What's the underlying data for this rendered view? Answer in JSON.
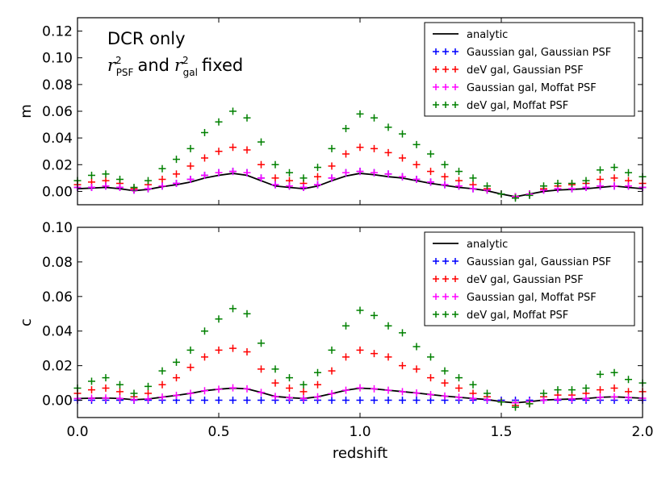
{
  "chart_data": [
    {
      "type": "scatter",
      "panel": "top",
      "ylabel": "m",
      "xlabel": "",
      "xlim": [
        0.0,
        2.0
      ],
      "ylim": [
        -0.01,
        0.13
      ],
      "yticks": [
        "0.00",
        "0.02",
        "0.04",
        "0.06",
        "0.08",
        "0.10",
        "0.12"
      ],
      "ytick_values": [
        0.0,
        0.02,
        0.04,
        0.06,
        0.08,
        0.1,
        0.12
      ],
      "xtick_values": [
        0.0,
        0.5,
        1.0,
        1.5,
        2.0
      ],
      "annotation": {
        "line1": "DCR only",
        "var1": "r",
        "sup1": "2",
        "sub1": "PSF",
        "mid": "and",
        "var2": "r",
        "sup2": "2",
        "sub2": "gal",
        "tail": "fixed"
      },
      "legend_position": "top-right",
      "x": [
        0.0,
        0.05,
        0.1,
        0.15,
        0.2,
        0.25,
        0.3,
        0.35,
        0.4,
        0.45,
        0.5,
        0.55,
        0.6,
        0.65,
        0.7,
        0.75,
        0.8,
        0.85,
        0.9,
        0.95,
        1.0,
        1.05,
        1.1,
        1.15,
        1.2,
        1.25,
        1.3,
        1.35,
        1.4,
        1.45,
        1.5,
        1.55,
        1.6,
        1.65,
        1.7,
        1.75,
        1.8,
        1.85,
        1.9,
        1.95,
        2.0
      ],
      "series": [
        {
          "name": "analytic",
          "style": "line",
          "color": "#000000",
          "x": [
            0.0,
            0.05,
            0.1,
            0.15,
            0.2,
            0.25,
            0.3,
            0.35,
            0.4,
            0.45,
            0.5,
            0.55,
            0.6,
            0.65,
            0.7,
            0.75,
            0.8,
            0.85,
            0.9,
            0.95,
            1.0,
            1.05,
            1.1,
            1.15,
            1.2,
            1.25,
            1.3,
            1.35,
            1.4,
            1.45,
            1.5,
            1.55,
            1.6,
            1.65,
            1.7,
            1.75,
            1.8,
            1.85,
            1.9,
            1.95,
            2.0
          ],
          "values": [
            0.002,
            0.0025,
            0.003,
            0.002,
            0.0005,
            0.0015,
            0.0035,
            0.005,
            0.007,
            0.01,
            0.012,
            0.0135,
            0.012,
            0.008,
            0.004,
            0.003,
            0.002,
            0.004,
            0.008,
            0.0115,
            0.0135,
            0.0125,
            0.011,
            0.01,
            0.008,
            0.006,
            0.0045,
            0.003,
            0.002,
            0.0005,
            -0.002,
            -0.004,
            -0.002,
            0.0,
            0.001,
            0.0015,
            0.002,
            0.003,
            0.004,
            0.003,
            0.002
          ]
        },
        {
          "name": "Gaussian gal, Gaussian PSF",
          "style": "markers",
          "color": "#0000ff",
          "x": [
            0.0,
            0.05,
            0.1,
            0.15,
            0.2,
            0.25,
            0.3,
            0.35,
            0.4,
            0.45,
            0.5,
            0.55,
            0.6,
            0.65,
            0.7,
            0.75,
            0.8,
            0.85,
            0.9,
            0.95,
            1.0,
            1.05,
            1.1,
            1.15,
            1.2,
            1.25,
            1.3,
            1.35,
            1.4,
            1.45,
            1.5,
            1.55,
            1.6,
            1.65,
            1.7,
            1.75,
            1.8,
            1.85,
            1.9,
            1.95,
            2.0
          ],
          "values": [
            0.003,
            0.003,
            0.004,
            0.003,
            0.001,
            0.002,
            0.004,
            0.006,
            0.009,
            0.012,
            0.014,
            0.015,
            0.014,
            0.01,
            0.005,
            0.004,
            0.003,
            0.005,
            0.01,
            0.014,
            0.015,
            0.014,
            0.013,
            0.011,
            0.009,
            0.007,
            0.005,
            0.004,
            0.002,
            0.001,
            -0.002,
            -0.004,
            -0.002,
            0.001,
            0.002,
            0.002,
            0.003,
            0.004,
            0.004,
            0.004,
            0.003
          ]
        },
        {
          "name": "deV gal, Gaussian PSF",
          "style": "markers",
          "color": "#ff0000",
          "x": [
            0.0,
            0.05,
            0.1,
            0.15,
            0.2,
            0.25,
            0.3,
            0.35,
            0.4,
            0.45,
            0.5,
            0.55,
            0.6,
            0.65,
            0.7,
            0.75,
            0.8,
            0.85,
            0.9,
            0.95,
            1.0,
            1.05,
            1.1,
            1.15,
            1.2,
            1.25,
            1.3,
            1.35,
            1.4,
            1.45,
            1.5,
            1.55,
            1.6,
            1.65,
            1.7,
            1.75,
            1.8,
            1.85,
            1.9,
            1.95,
            2.0
          ],
          "values": [
            0.005,
            0.007,
            0.008,
            0.006,
            0.002,
            0.005,
            0.009,
            0.013,
            0.019,
            0.025,
            0.03,
            0.033,
            0.031,
            0.02,
            0.01,
            0.008,
            0.006,
            0.011,
            0.019,
            0.028,
            0.033,
            0.032,
            0.029,
            0.025,
            0.02,
            0.015,
            0.011,
            0.008,
            0.005,
            0.002,
            -0.002,
            -0.004,
            -0.002,
            0.002,
            0.004,
            0.005,
            0.006,
            0.009,
            0.01,
            0.008,
            0.006
          ]
        },
        {
          "name": "Gaussian gal, Moffat PSF",
          "style": "markers",
          "color": "#ff00ff",
          "x": [
            0.0,
            0.05,
            0.1,
            0.15,
            0.2,
            0.25,
            0.3,
            0.35,
            0.4,
            0.45,
            0.5,
            0.55,
            0.6,
            0.65,
            0.7,
            0.75,
            0.8,
            0.85,
            0.9,
            0.95,
            1.0,
            1.05,
            1.1,
            1.15,
            1.2,
            1.25,
            1.3,
            1.35,
            1.4,
            1.45,
            1.5,
            1.55,
            1.6,
            1.65,
            1.7,
            1.75,
            1.8,
            1.85,
            1.9,
            1.95,
            2.0
          ],
          "values": [
            0.003,
            0.003,
            0.004,
            0.003,
            0.001,
            0.002,
            0.004,
            0.006,
            0.009,
            0.012,
            0.014,
            0.015,
            0.014,
            0.01,
            0.005,
            0.004,
            0.003,
            0.005,
            0.01,
            0.014,
            0.015,
            0.014,
            0.013,
            0.011,
            0.009,
            0.007,
            0.005,
            0.004,
            0.002,
            0.001,
            -0.002,
            -0.004,
            -0.002,
            0.001,
            0.002,
            0.002,
            0.003,
            0.004,
            0.004,
            0.004,
            0.003
          ]
        },
        {
          "name": "deV gal, Moffat PSF",
          "style": "markers",
          "color": "#008000",
          "x": [
            0.0,
            0.05,
            0.1,
            0.15,
            0.2,
            0.25,
            0.3,
            0.35,
            0.4,
            0.45,
            0.5,
            0.55,
            0.6,
            0.65,
            0.7,
            0.75,
            0.8,
            0.85,
            0.9,
            0.95,
            1.0,
            1.05,
            1.1,
            1.15,
            1.2,
            1.25,
            1.3,
            1.35,
            1.4,
            1.45,
            1.5,
            1.55,
            1.6,
            1.65,
            1.7,
            1.75,
            1.8,
            1.85,
            1.9,
            1.95,
            2.0
          ],
          "values": [
            0.008,
            0.012,
            0.013,
            0.009,
            0.003,
            0.008,
            0.017,
            0.024,
            0.032,
            0.044,
            0.052,
            0.06,
            0.055,
            0.037,
            0.02,
            0.014,
            0.01,
            0.018,
            0.032,
            0.047,
            0.058,
            0.055,
            0.048,
            0.043,
            0.035,
            0.028,
            0.02,
            0.015,
            0.01,
            0.004,
            -0.002,
            -0.005,
            -0.003,
            0.004,
            0.006,
            0.006,
            0.008,
            0.016,
            0.018,
            0.014,
            0.011
          ]
        }
      ]
    },
    {
      "type": "scatter",
      "panel": "bottom",
      "ylabel": "c",
      "xlabel": "redshift",
      "xlim": [
        0.0,
        2.0
      ],
      "ylim": [
        -0.01,
        0.1
      ],
      "yticks": [
        "0.00",
        "0.02",
        "0.04",
        "0.06",
        "0.08",
        "0.10"
      ],
      "ytick_values": [
        0.0,
        0.02,
        0.04,
        0.06,
        0.08,
        0.1
      ],
      "xticks": [
        "0.0",
        "0.5",
        "1.0",
        "1.5",
        "2.0"
      ],
      "xtick_values": [
        0.0,
        0.5,
        1.0,
        1.5,
        2.0
      ],
      "legend_position": "top-right",
      "series": [
        {
          "name": "analytic",
          "style": "line",
          "color": "#000000",
          "x": [
            0.0,
            0.05,
            0.1,
            0.15,
            0.2,
            0.25,
            0.3,
            0.35,
            0.4,
            0.45,
            0.5,
            0.55,
            0.6,
            0.65,
            0.7,
            0.75,
            0.8,
            0.85,
            0.9,
            0.95,
            1.0,
            1.05,
            1.1,
            1.15,
            1.2,
            1.25,
            1.3,
            1.35,
            1.4,
            1.45,
            1.5,
            1.55,
            1.6,
            1.65,
            1.7,
            1.75,
            1.8,
            1.85,
            1.9,
            1.95,
            2.0
          ],
          "values": [
            0.001,
            0.0012,
            0.0013,
            0.001,
            0.0003,
            0.0007,
            0.0018,
            0.0028,
            0.004,
            0.0055,
            0.0064,
            0.007,
            0.0066,
            0.0045,
            0.0022,
            0.0015,
            0.001,
            0.002,
            0.0038,
            0.0058,
            0.007,
            0.0066,
            0.0058,
            0.005,
            0.0042,
            0.0033,
            0.0024,
            0.0017,
            0.001,
            0.0004,
            -0.0008,
            -0.0015,
            -0.0008,
            0.0001,
            0.0005,
            0.0007,
            0.001,
            0.0017,
            0.002,
            0.0016,
            0.0012
          ]
        },
        {
          "name": "Gaussian gal, Gaussian PSF",
          "style": "markers",
          "color": "#0000ff",
          "x": [
            0.0,
            0.05,
            0.1,
            0.15,
            0.2,
            0.25,
            0.3,
            0.35,
            0.4,
            0.45,
            0.5,
            0.55,
            0.6,
            0.65,
            0.7,
            0.75,
            0.8,
            0.85,
            0.9,
            0.95,
            1.0,
            1.05,
            1.1,
            1.15,
            1.2,
            1.25,
            1.3,
            1.35,
            1.4,
            1.45,
            1.5,
            1.55,
            1.6,
            1.65,
            1.7,
            1.75,
            1.8,
            1.85,
            1.9,
            1.95,
            2.0
          ],
          "values": [
            0.0,
            0.0,
            0.0,
            0.0,
            0.0,
            0.0,
            0.0,
            0.0,
            0.0,
            0.0,
            0.0,
            0.0,
            0.0,
            0.0,
            0.0,
            0.0,
            0.0,
            0.0,
            0.0,
            0.0,
            0.0,
            0.0,
            0.0,
            0.0,
            0.0,
            0.0,
            0.0,
            0.0,
            0.0,
            0.0,
            0.0,
            0.0,
            0.0,
            0.0,
            0.0,
            0.0,
            0.0,
            0.0,
            0.0,
            0.0,
            0.0
          ]
        },
        {
          "name": "deV gal, Gaussian PSF",
          "style": "markers",
          "color": "#ff0000",
          "x": [
            0.0,
            0.05,
            0.1,
            0.15,
            0.2,
            0.25,
            0.3,
            0.35,
            0.4,
            0.45,
            0.5,
            0.55,
            0.6,
            0.65,
            0.7,
            0.75,
            0.8,
            0.85,
            0.9,
            0.95,
            1.0,
            1.05,
            1.1,
            1.15,
            1.2,
            1.25,
            1.3,
            1.35,
            1.4,
            1.45,
            1.5,
            1.55,
            1.6,
            1.65,
            1.7,
            1.75,
            1.8,
            1.85,
            1.9,
            1.95,
            2.0
          ],
          "values": [
            0.004,
            0.006,
            0.007,
            0.005,
            0.002,
            0.004,
            0.009,
            0.013,
            0.019,
            0.025,
            0.029,
            0.03,
            0.028,
            0.018,
            0.01,
            0.007,
            0.005,
            0.009,
            0.017,
            0.025,
            0.029,
            0.027,
            0.025,
            0.02,
            0.018,
            0.013,
            0.01,
            0.007,
            0.004,
            0.002,
            -0.001,
            -0.003,
            -0.002,
            0.002,
            0.003,
            0.003,
            0.004,
            0.006,
            0.007,
            0.005,
            0.005
          ]
        },
        {
          "name": "Gaussian gal, Moffat PSF",
          "style": "markers",
          "color": "#ff00ff",
          "x": [
            0.0,
            0.05,
            0.1,
            0.15,
            0.2,
            0.25,
            0.3,
            0.35,
            0.4,
            0.45,
            0.5,
            0.55,
            0.6,
            0.65,
            0.7,
            0.75,
            0.8,
            0.85,
            0.9,
            0.95,
            1.0,
            1.05,
            1.1,
            1.15,
            1.2,
            1.25,
            1.3,
            1.35,
            1.4,
            1.45,
            1.5,
            1.55,
            1.6,
            1.65,
            1.7,
            1.75,
            1.8,
            1.85,
            1.9,
            1.95,
            2.0
          ],
          "values": [
            0.001,
            0.0012,
            0.0013,
            0.001,
            0.0003,
            0.0007,
            0.0018,
            0.0028,
            0.004,
            0.0055,
            0.0064,
            0.0072,
            0.0066,
            0.0045,
            0.0022,
            0.0015,
            0.001,
            0.002,
            0.0038,
            0.0058,
            0.0072,
            0.0066,
            0.0058,
            0.005,
            0.0042,
            0.0033,
            0.0024,
            0.0017,
            0.001,
            0.0004,
            -0.0008,
            -0.0015,
            -0.0008,
            0.0001,
            0.0005,
            0.0007,
            0.001,
            0.0017,
            0.002,
            0.0016,
            0.0012
          ]
        },
        {
          "name": "deV gal, Moffat PSF",
          "style": "markers",
          "color": "#008000",
          "x": [
            0.0,
            0.05,
            0.1,
            0.15,
            0.2,
            0.25,
            0.3,
            0.35,
            0.4,
            0.45,
            0.5,
            0.55,
            0.6,
            0.65,
            0.7,
            0.75,
            0.8,
            0.85,
            0.9,
            0.95,
            1.0,
            1.05,
            1.1,
            1.15,
            1.2,
            1.25,
            1.3,
            1.35,
            1.4,
            1.45,
            1.5,
            1.55,
            1.6,
            1.65,
            1.7,
            1.75,
            1.8,
            1.85,
            1.9,
            1.95,
            2.0
          ],
          "values": [
            0.007,
            0.011,
            0.013,
            0.009,
            0.004,
            0.008,
            0.017,
            0.022,
            0.029,
            0.04,
            0.047,
            0.053,
            0.05,
            0.033,
            0.018,
            0.013,
            0.009,
            0.016,
            0.029,
            0.043,
            0.052,
            0.049,
            0.043,
            0.039,
            0.031,
            0.025,
            0.017,
            0.013,
            0.009,
            0.004,
            -0.001,
            -0.004,
            -0.002,
            0.004,
            0.006,
            0.006,
            0.007,
            0.015,
            0.016,
            0.012,
            0.01
          ]
        }
      ]
    }
  ]
}
